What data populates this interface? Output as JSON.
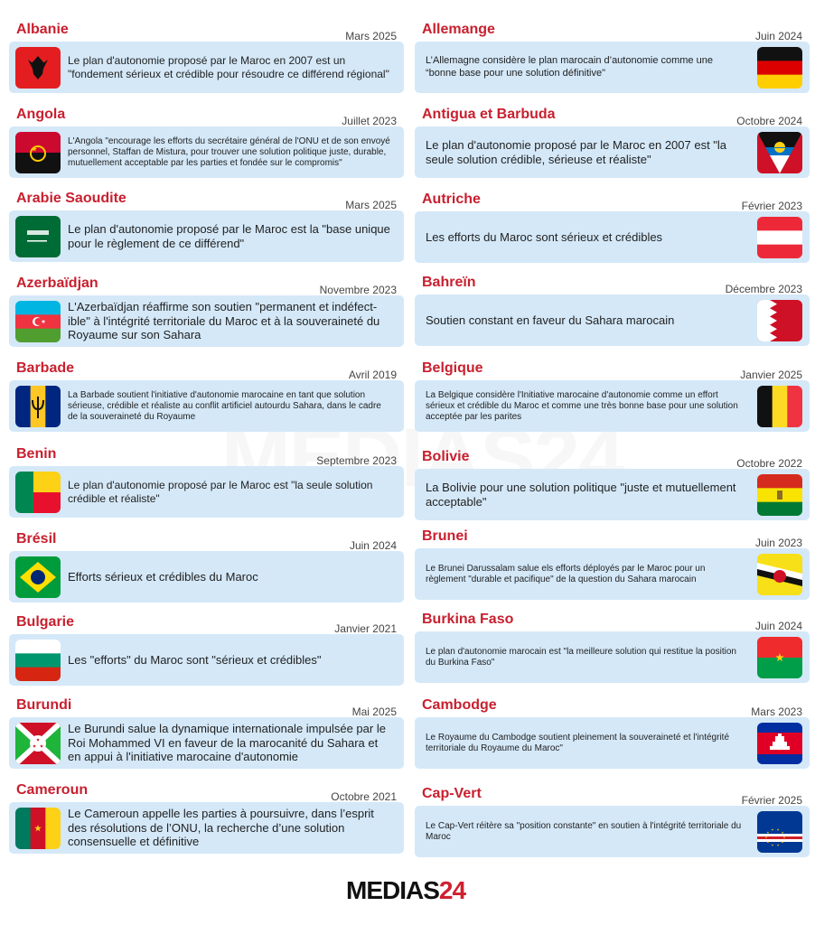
{
  "watermark": "MEDIAS24",
  "logo": {
    "text": "MEDIAS",
    "number": "24"
  },
  "entries": [
    {
      "country": "Albanie",
      "date": "Mars 2025",
      "flag": "albania-flag",
      "text": "Le plan d'autonomie proposé par le Maroc en 2007 est un \"fondement sérieux et crédible pour résoudre ce différend régional\""
    },
    {
      "country": "Allemange",
      "date": "Juin 2024",
      "flag": "germany-flag",
      "text": "L’Allemagne considère le plan marocain d’autonomie comme une “bonne base pour une solution définitive\""
    },
    {
      "country": "Angola",
      "date": "Juillet 2023",
      "flag": "angola-flag",
      "text": "L'Angola \"encourage les efforts du secrétaire général de l'ONU et de son envoyé personnel, Staffan de Mistura, pour trouver une solution politique juste, durable, mutuellement acceptable par les parties et fondée sur le compromis\""
    },
    {
      "country": "Antigua et Barbuda",
      "date": "Octobre 2024",
      "flag": "antigua-flag",
      "text": "Le plan d'autonomie proposé par le Maroc en 2007 est \"la seule solution crédible, sérieuse et réaliste\""
    },
    {
      "country": "Arabie Saoudite",
      "date": "Mars 2025",
      "flag": "saudi-flag",
      "text": "Le plan d'autonomie proposé par le Maroc est la \"base unique pour le règlement de ce différend\""
    },
    {
      "country": "Autriche",
      "date": "Février 2023",
      "flag": "austria-flag",
      "text": "Les efforts du Maroc sont sérieux et crédibles"
    },
    {
      "country": "Azerbaïdjan",
      "date": "Novembre 2023",
      "flag": "azerbaijan-flag",
      "text": "L'Azerbaïdjan réaffirme son soutien \"permanent et indéfect-ible\" à l'intégrité territoriale du Maroc et à la souveraineté du Royaume sur son Sahara"
    },
    {
      "country": "Bahreïn",
      "date": "Décembre 2023",
      "flag": "bahrain-flag",
      "text": "Soutien constant en faveur du Sahara marocain"
    },
    {
      "country": "Barbade",
      "date": "Avril 2019",
      "flag": "barbados-flag",
      "text": "La Barbade soutient l'initiative d'autonomie marocaine en tant que solution sérieuse, crédible et réaliste au conflit artificiel autourdu Sahara, dans le cadre de la souveraineté du Royaume"
    },
    {
      "country": "Belgique",
      "date": "Janvier 2025",
      "flag": "belgium-flag",
      "text": "La Belgique considère l'Initiative marocaine d'autonomie comme un effort sérieux et crédible du Maroc et comme une très bonne base pour une solution acceptée par les parites"
    },
    {
      "country": "Benin",
      "date": "Septembre 2023",
      "flag": "benin-flag",
      "text": "Le plan d'autonomie proposé par le Maroc est \"la seule solution crédible et réaliste\""
    },
    {
      "country": "Bolivie",
      "date": "Octobre 2022",
      "flag": "bolivia-flag",
      "text": "La Bolivie pour une solution politique \"juste et mutuellement acceptable\""
    },
    {
      "country": "Brésil",
      "date": "Juin 2024",
      "flag": "brazil-flag",
      "text": "Efforts sérieux et crédibles du Maroc"
    },
    {
      "country": "Brunei",
      "date": "Juin 2023",
      "flag": "brunei-flag",
      "text": "Le Brunei Darussalam salue els efforts déployés par le Maroc pour un règlement \"durable et pacifique\" de la question du Sahara marocain"
    },
    {
      "country": "Bulgarie",
      "date": "Janvier 2021",
      "flag": "bulgaria-flag",
      "text": "Les \"efforts\" du Maroc sont \"sérieux et crédibles\""
    },
    {
      "country": "Burkina Faso",
      "date": "Juin 2024",
      "flag": "burkina-flag",
      "text": "Le plan d'autonomie marocain est \"la meilleure solution qui restitue la position du Burkina Faso\""
    },
    {
      "country": "Burundi",
      "date": "Mai 2025",
      "flag": "burundi-flag",
      "text": "Le Burundi salue la dynamique internationale impulsée par le Roi Mohammed VI en faveur de la marocanité du Sahara et en appui à l'initiative marocaine d'autonomie"
    },
    {
      "country": "Cambodge",
      "date": "Mars 2023",
      "flag": "cambodia-flag",
      "text": "Le Royaume du Cambodge soutient pleinement la souveraineté et l'intégrité territoriale du Royaume du Maroc\""
    },
    {
      "country": "Cameroun",
      "date": "Octobre 2021",
      "flag": "cameroon-flag",
      "text": "Le Cameroun appelle les parties à poursuivre, dans l’esprit des résolutions de l’ONU, la recherche d’une solution consensuelle et définitive"
    },
    {
      "country": "Cap-Vert",
      "date": "Février 2025",
      "flag": "cape-verde-flag",
      "text": "Le Cap-Vert réitère sa \"position constante\" en soutien à l'intégrité territoriale du Maroc"
    }
  ]
}
